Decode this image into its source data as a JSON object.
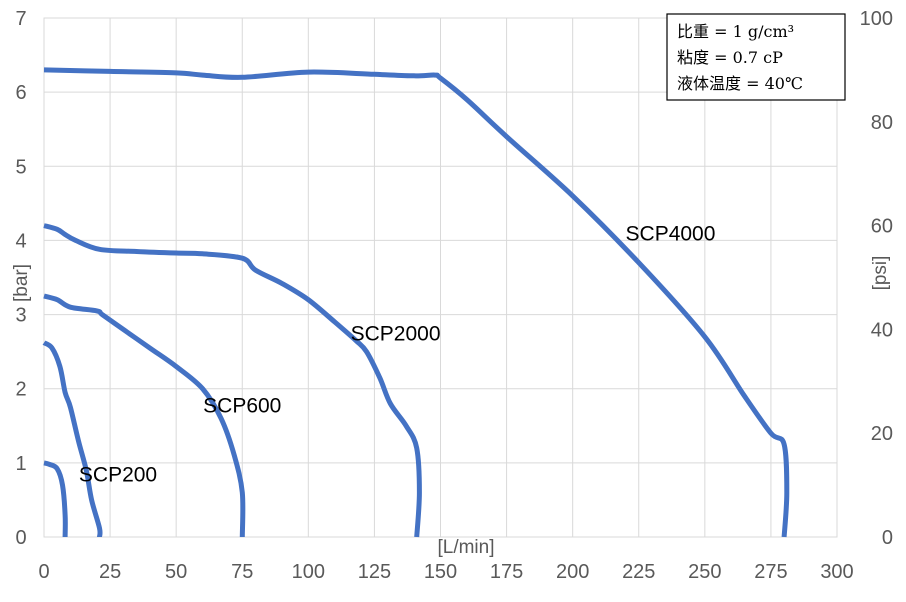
{
  "chart_data": {
    "type": "line",
    "x_axis": {
      "label": "[L/min]",
      "min": 0,
      "max": 300,
      "ticks": [
        0,
        25,
        50,
        75,
        100,
        125,
        150,
        175,
        200,
        225,
        250,
        275,
        300
      ]
    },
    "y_axis_left": {
      "label": "[bar]",
      "min": 0,
      "max": 7,
      "ticks": [
        0,
        1,
        2,
        3,
        4,
        5,
        6,
        7
      ]
    },
    "y_axis_right": {
      "label": "[psi]",
      "min": 0,
      "max": 100,
      "ticks": [
        0,
        20,
        40,
        60,
        80,
        100
      ]
    },
    "grid": {
      "vertical": true,
      "horizontal": true
    },
    "line_color": "#4472C4",
    "annotation_box": {
      "lines": [
        "比重 = 1 g/cm³",
        "粘度 = 0.7 cP",
        "液体温度 = 40℃"
      ],
      "position": "top-right"
    },
    "series": [
      {
        "name": "SCP200",
        "points": [
          [
            0,
            1.0
          ],
          [
            2,
            0.98
          ],
          [
            5,
            0.92
          ],
          [
            7,
            0.7
          ],
          [
            8,
            0.3
          ],
          [
            8,
            0
          ]
        ]
      },
      {
        "name": "SCP600",
        "points": [
          [
            0,
            2.62
          ],
          [
            3,
            2.55
          ],
          [
            6,
            2.3
          ],
          [
            8,
            1.95
          ],
          [
            10,
            1.75
          ],
          [
            13,
            1.3
          ],
          [
            16,
            0.9
          ],
          [
            18,
            0.5
          ],
          [
            21,
            0.12
          ],
          [
            21,
            0
          ]
        ]
      },
      {
        "name": "SCP2000",
        "points": [
          [
            0,
            3.25
          ],
          [
            5,
            3.2
          ],
          [
            10,
            3.1
          ],
          [
            20,
            3.05
          ],
          [
            22,
            3.0
          ],
          [
            28,
            2.85
          ],
          [
            40,
            2.55
          ],
          [
            50,
            2.3
          ],
          [
            60,
            2.0
          ],
          [
            67,
            1.6
          ],
          [
            72,
            1.1
          ],
          [
            75,
            0.6
          ],
          [
            75,
            0
          ]
        ]
      },
      {
        "name": "SCP4000",
        "points": [
          [
            0,
            4.2
          ],
          [
            5,
            4.15
          ],
          [
            8,
            4.08
          ],
          [
            12,
            4.0
          ],
          [
            21,
            3.88
          ],
          [
            35,
            3.85
          ],
          [
            50,
            3.83
          ],
          [
            60,
            3.82
          ],
          [
            75,
            3.76
          ],
          [
            80,
            3.6
          ],
          [
            90,
            3.42
          ],
          [
            100,
            3.2
          ],
          [
            110,
            2.9
          ],
          [
            118,
            2.65
          ],
          [
            122,
            2.5
          ],
          [
            127,
            2.15
          ],
          [
            131,
            1.8
          ],
          [
            137,
            1.5
          ],
          [
            141,
            1.2
          ],
          [
            142,
            0.6
          ],
          [
            141,
            0
          ]
        ]
      },
      {
        "name": "",
        "points": [
          [
            0,
            6.3
          ],
          [
            25,
            6.28
          ],
          [
            50,
            6.26
          ],
          [
            60,
            6.23
          ],
          [
            75,
            6.2
          ],
          [
            100,
            6.27
          ],
          [
            125,
            6.24
          ],
          [
            140,
            6.22
          ],
          [
            148,
            6.23
          ],
          [
            150,
            6.19
          ],
          [
            160,
            5.9
          ],
          [
            175,
            5.4
          ],
          [
            200,
            4.6
          ],
          [
            225,
            3.7
          ],
          [
            250,
            2.7
          ],
          [
            265,
            1.9
          ],
          [
            275,
            1.4
          ],
          [
            280,
            1.25
          ],
          [
            281,
            0.6
          ],
          [
            280,
            0
          ]
        ]
      }
    ],
    "series_labels": [
      {
        "text": "SCP200",
        "x": 28,
        "y": 0.75
      },
      {
        "text": "SCP600",
        "x": 75,
        "y": 1.68
      },
      {
        "text": "SCP2000",
        "x": 133,
        "y": 2.65
      },
      {
        "text": "SCP4000",
        "x": 237,
        "y": 4.0
      }
    ]
  }
}
